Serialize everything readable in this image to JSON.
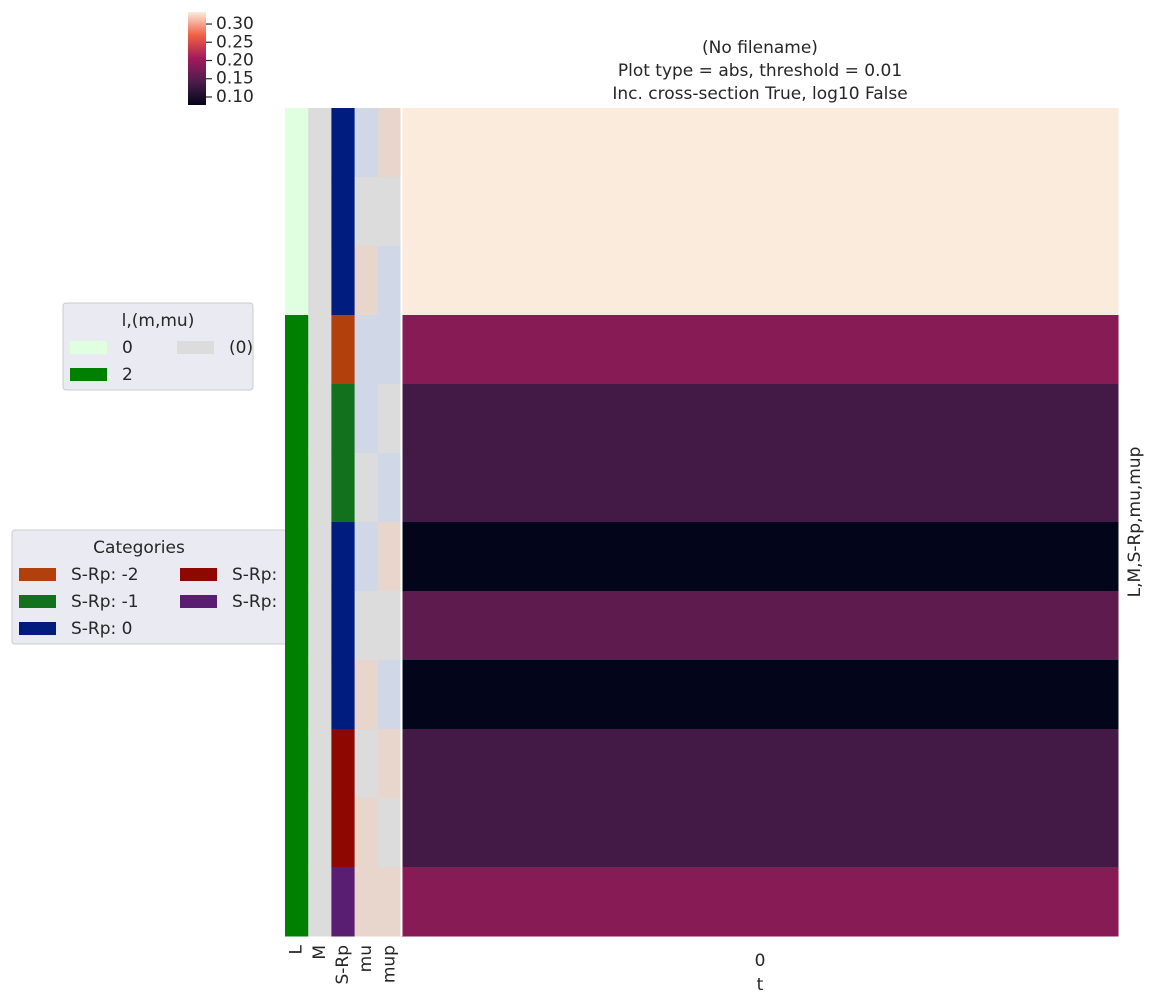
{
  "chart_data": {
    "type": "heatmap",
    "title": [
      "(No filename)",
      "Plot type = abs, threshold = 0.01",
      "Inc. cross-section True, log10 False"
    ],
    "x_label": "t",
    "y_label": "L,M,S-Rp,mu,mup",
    "categories": [
      "0"
    ],
    "values": [
      [
        0.333
      ],
      [
        0.333
      ],
      [
        0.333
      ],
      [
        0.185
      ],
      [
        0.134
      ],
      [
        0.134
      ],
      [
        0.078
      ],
      [
        0.155
      ],
      [
        0.078
      ],
      [
        0.134
      ],
      [
        0.134
      ],
      [
        0.185
      ]
    ],
    "colormap": [
      "#03051a",
      "#4c1d4b",
      "#a11a5b",
      "#f06043",
      "#faebdd"
    ],
    "vlim": [
      0.078,
      0.333
    ],
    "colorbar_ticks": [
      {
        "value": 0.1,
        "label": "0.10"
      },
      0.15,
      {
        "value": 0.2,
        "label": "0.20"
      },
      0.25,
      {
        "value": 0.3,
        "label": "0.30"
      }
    ],
    "row_colors": {
      "labels": [
        "L",
        "M",
        "S-Rp",
        "mu",
        "mup"
      ],
      "colors": [
        [
          "#e0ffe0",
          "#e0ffe0",
          "#e0ffe0",
          "#008000",
          "#008000",
          "#008000",
          "#008000",
          "#008000",
          "#008000",
          "#008000",
          "#008000",
          "#008000"
        ],
        [
          "#dcdcdc",
          "#dcdcdc",
          "#dcdcdc",
          "#dcdcdc",
          "#dcdcdc",
          "#dcdcdc",
          "#dcdcdc",
          "#dcdcdc",
          "#dcdcdc",
          "#dcdcdc",
          "#dcdcdc",
          "#dcdcdc"
        ],
        [
          "#001c7f",
          "#001c7f",
          "#001c7f",
          "#b1400d",
          "#12711c",
          "#12711c",
          "#001c7f",
          "#001c7f",
          "#001c7f",
          "#8c0800",
          "#8c0800",
          "#591e71"
        ],
        [
          "#d0d8e8",
          "#dcdcdc",
          "#e8d5cc",
          "#d0d8e8",
          "#d0d8e8",
          "#dcdcdc",
          "#d0d8e8",
          "#dcdcdc",
          "#e8d5cc",
          "#dcdcdc",
          "#e8d5cc",
          "#e8d5cc"
        ],
        [
          "#e8d5cc",
          "#dcdcdc",
          "#d0d8e8",
          "#d0d8e8",
          "#dcdcdc",
          "#d0d8e8",
          "#e8d5cc",
          "#dcdcdc",
          "#d0d8e8",
          "#e8d5cc",
          "#dcdcdc",
          "#e8d5cc"
        ]
      ]
    },
    "legends": [
      {
        "title": "l,(m,mu)",
        "entries": [
          {
            "label": "0",
            "color": "#e0ffe0"
          },
          {
            "label": "2",
            "color": "#008000"
          },
          {
            "label": "(0)",
            "color": "#dcdcdc"
          }
        ]
      },
      {
        "title": "Categories",
        "entries": [
          {
            "label": "S-Rp: -2",
            "color": "#b1400d"
          },
          {
            "label": "S-Rp: -1",
            "color": "#12711c"
          },
          {
            "label": "S-Rp: 0",
            "color": "#001c7f"
          },
          {
            "label": "S-Rp:",
            "color": "#8c0800"
          },
          {
            "label": "S-Rp:",
            "color": "#591e71"
          }
        ]
      }
    ]
  }
}
